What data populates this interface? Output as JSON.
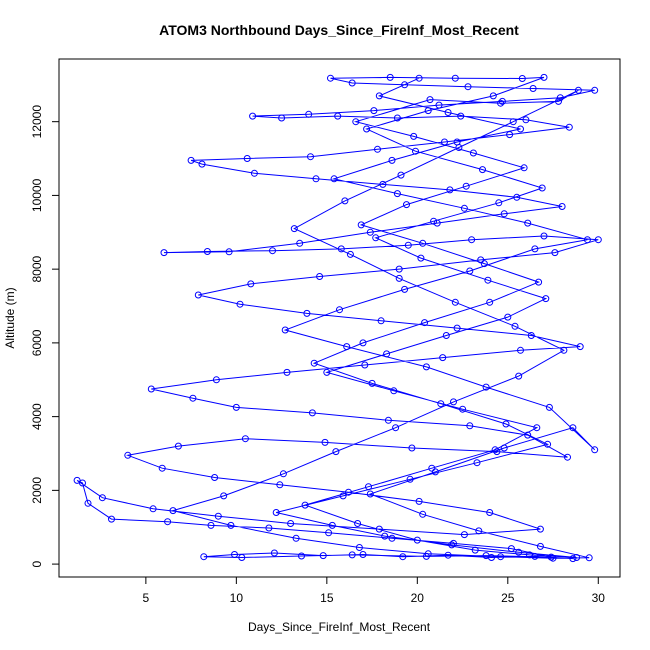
{
  "chart_data": {
    "type": "line",
    "title": "ATOM3 Northbound Days_Since_FireInf_Most_Recent",
    "xlabel": "Days_Since_FireInf_Most_Recent",
    "ylabel": "Altitude (m)",
    "xlim": [
      0.2,
      31.2
    ],
    "ylim": [
      -350,
      13700
    ],
    "xticks": [
      5,
      10,
      15,
      20,
      25,
      30
    ],
    "yticks": [
      0,
      2000,
      4000,
      6000,
      8000,
      10000,
      12000
    ],
    "series_color": "#0000ff",
    "marker": "open-circle",
    "grid": false,
    "series": [
      {
        "values": [
          [
            28.6,
            150
          ],
          [
            26.5,
            210
          ],
          [
            24.1,
            180
          ],
          [
            21.7,
            240
          ],
          [
            19.2,
            200
          ],
          [
            17.0,
            260
          ],
          [
            14.8,
            230
          ],
          [
            12.1,
            300
          ],
          [
            9.9,
            260
          ],
          [
            8.2,
            200
          ],
          [
            10.3,
            180
          ],
          [
            13.6,
            220
          ],
          [
            16.4,
            250
          ],
          [
            20.5,
            210
          ],
          [
            23.8,
            230
          ],
          [
            27.4,
            190
          ],
          [
            25.2,
            420
          ],
          [
            22.0,
            560
          ],
          [
            18.6,
            700
          ],
          [
            15.1,
            850
          ],
          [
            11.8,
            980
          ],
          [
            8.6,
            1050
          ],
          [
            6.2,
            1150
          ],
          [
            3.1,
            1220
          ],
          [
            1.8,
            1650
          ],
          [
            1.5,
            2200
          ],
          [
            1.2,
            2270
          ],
          [
            2.6,
            1800
          ],
          [
            5.4,
            1500
          ],
          [
            9.0,
            1300
          ],
          [
            13.0,
            1100
          ],
          [
            17.9,
            950
          ],
          [
            22.6,
            800
          ],
          [
            26.8,
            950
          ],
          [
            24.0,
            1400
          ],
          [
            20.1,
            1700
          ],
          [
            16.2,
            1950
          ],
          [
            12.4,
            2150
          ],
          [
            8.8,
            2350
          ],
          [
            5.9,
            2600
          ],
          [
            4.0,
            2950
          ],
          [
            6.8,
            3200
          ],
          [
            10.5,
            3400
          ],
          [
            14.9,
            3300
          ],
          [
            19.7,
            3150
          ],
          [
            24.4,
            3050
          ],
          [
            28.3,
            2900
          ],
          [
            26.1,
            3500
          ],
          [
            22.9,
            3750
          ],
          [
            18.4,
            3900
          ],
          [
            14.2,
            4100
          ],
          [
            10.0,
            4250
          ],
          [
            7.6,
            4500
          ],
          [
            5.3,
            4750
          ],
          [
            8.9,
            5000
          ],
          [
            12.8,
            5200
          ],
          [
            17.1,
            5400
          ],
          [
            21.4,
            5600
          ],
          [
            25.7,
            5800
          ],
          [
            29.0,
            5900
          ],
          [
            26.3,
            6200
          ],
          [
            22.2,
            6400
          ],
          [
            18.0,
            6600
          ],
          [
            13.9,
            6800
          ],
          [
            10.2,
            7050
          ],
          [
            7.9,
            7300
          ],
          [
            10.8,
            7600
          ],
          [
            14.6,
            7800
          ],
          [
            19.0,
            8000
          ],
          [
            23.5,
            8250
          ],
          [
            27.6,
            8450
          ],
          [
            30.0,
            8800
          ],
          [
            27.0,
            8900
          ],
          [
            23.0,
            8800
          ],
          [
            19.5,
            8650
          ],
          [
            15.8,
            8550
          ],
          [
            12.0,
            8500
          ],
          [
            8.4,
            8480
          ],
          [
            6.0,
            8450
          ],
          [
            9.6,
            8470
          ],
          [
            13.5,
            8700
          ],
          [
            17.4,
            9000
          ],
          [
            21.1,
            9250
          ],
          [
            24.8,
            9500
          ],
          [
            28.0,
            9700
          ],
          [
            25.5,
            9950
          ],
          [
            21.8,
            10150
          ],
          [
            18.1,
            10300
          ],
          [
            14.4,
            10450
          ],
          [
            11.0,
            10600
          ],
          [
            8.1,
            10850
          ],
          [
            7.5,
            10950
          ],
          [
            10.6,
            11000
          ],
          [
            14.1,
            11050
          ],
          [
            17.8,
            11250
          ],
          [
            21.5,
            11450
          ],
          [
            25.1,
            11650
          ],
          [
            28.4,
            11850
          ],
          [
            26.0,
            12050
          ],
          [
            22.4,
            12150
          ],
          [
            18.9,
            12100
          ],
          [
            15.6,
            12150
          ],
          [
            12.5,
            12100
          ],
          [
            10.9,
            12150
          ],
          [
            14.0,
            12200
          ],
          [
            17.6,
            12300
          ],
          [
            21.2,
            12450
          ],
          [
            24.7,
            12550
          ],
          [
            27.9,
            12650
          ],
          [
            29.8,
            12850
          ],
          [
            26.4,
            12900
          ],
          [
            22.8,
            12950
          ],
          [
            19.3,
            13000
          ],
          [
            16.4,
            13050
          ],
          [
            15.2,
            13180
          ],
          [
            18.5,
            13200
          ],
          [
            22.1,
            13180
          ],
          [
            25.8,
            13170
          ],
          [
            27.0,
            13200
          ],
          [
            24.2,
            12700
          ],
          [
            20.6,
            12300
          ],
          [
            17.2,
            11800
          ],
          [
            19.9,
            11200
          ],
          [
            23.6,
            10700
          ],
          [
            26.9,
            10200
          ],
          [
            24.5,
            9800
          ],
          [
            20.9,
            9300
          ],
          [
            17.7,
            8850
          ],
          [
            20.2,
            8300
          ],
          [
            23.9,
            7700
          ],
          [
            27.1,
            7200
          ],
          [
            25.0,
            6700
          ],
          [
            21.6,
            6200
          ],
          [
            18.3,
            5700
          ],
          [
            15.0,
            5200
          ],
          [
            18.7,
            4700
          ],
          [
            22.5,
            4200
          ],
          [
            26.6,
            3700
          ],
          [
            24.3,
            3100
          ],
          [
            20.8,
            2600
          ],
          [
            17.3,
            2100
          ],
          [
            13.8,
            1600
          ],
          [
            16.7,
            1100
          ],
          [
            20.0,
            650
          ],
          [
            23.2,
            380
          ],
          [
            26.2,
            250
          ],
          [
            28.8,
            180
          ],
          [
            25.6,
            320
          ],
          [
            21.9,
            520
          ],
          [
            18.2,
            760
          ],
          [
            15.3,
            1050
          ],
          [
            12.2,
            1400
          ],
          [
            15.9,
            1850
          ],
          [
            19.6,
            2300
          ],
          [
            23.3,
            2750
          ],
          [
            27.2,
            3250
          ],
          [
            24.9,
            3800
          ],
          [
            21.3,
            4350
          ],
          [
            17.5,
            4900
          ],
          [
            14.3,
            5450
          ],
          [
            17.0,
            6000
          ],
          [
            20.4,
            6550
          ],
          [
            24.0,
            7100
          ],
          [
            26.7,
            7650
          ],
          [
            23.7,
            8150
          ],
          [
            20.3,
            8700
          ],
          [
            16.9,
            9200
          ],
          [
            19.4,
            9750
          ],
          [
            22.7,
            10250
          ],
          [
            25.9,
            10750
          ],
          [
            23.1,
            11150
          ],
          [
            19.8,
            11600
          ],
          [
            16.6,
            12000
          ],
          [
            20.7,
            12600
          ],
          [
            24.6,
            12500
          ],
          [
            27.8,
            12550
          ],
          [
            28.9,
            12850
          ],
          [
            25.3,
            12000
          ],
          [
            22.3,
            11300
          ],
          [
            19.1,
            10550
          ],
          [
            16.0,
            9850
          ],
          [
            13.2,
            9100
          ],
          [
            16.3,
            8400
          ],
          [
            19.0,
            7750
          ],
          [
            22.1,
            7100
          ],
          [
            25.4,
            6450
          ],
          [
            28.1,
            5800
          ],
          [
            25.6,
            5100
          ],
          [
            22.0,
            4400
          ],
          [
            18.8,
            3700
          ],
          [
            15.5,
            3050
          ],
          [
            12.6,
            2450
          ],
          [
            9.3,
            1850
          ],
          [
            6.5,
            1450
          ],
          [
            9.7,
            1050
          ],
          [
            13.3,
            700
          ],
          [
            16.8,
            450
          ],
          [
            20.6,
            280
          ],
          [
            24.6,
            200
          ],
          [
            27.5,
            160
          ],
          [
            29.5,
            170
          ],
          [
            26.8,
            480
          ],
          [
            23.4,
            900
          ],
          [
            20.3,
            1350
          ],
          [
            17.4,
            1900
          ],
          [
            21.0,
            2500
          ],
          [
            24.8,
            3150
          ],
          [
            28.6,
            3700
          ],
          [
            29.8,
            3100
          ],
          [
            27.3,
            4250
          ],
          [
            23.8,
            4800
          ],
          [
            20.5,
            5350
          ],
          [
            16.1,
            5900
          ],
          [
            12.7,
            6350
          ],
          [
            15.7,
            6900
          ],
          [
            19.3,
            7450
          ],
          [
            22.9,
            7950
          ],
          [
            26.5,
            8550
          ],
          [
            29.4,
            8800
          ],
          [
            26.1,
            9250
          ],
          [
            22.6,
            9650
          ],
          [
            18.9,
            10050
          ],
          [
            15.4,
            10450
          ],
          [
            18.6,
            10950
          ],
          [
            22.2,
            11450
          ],
          [
            25.7,
            11800
          ],
          [
            21.7,
            12250
          ],
          [
            17.9,
            12700
          ],
          [
            20.1,
            13180
          ]
        ]
      }
    ]
  }
}
